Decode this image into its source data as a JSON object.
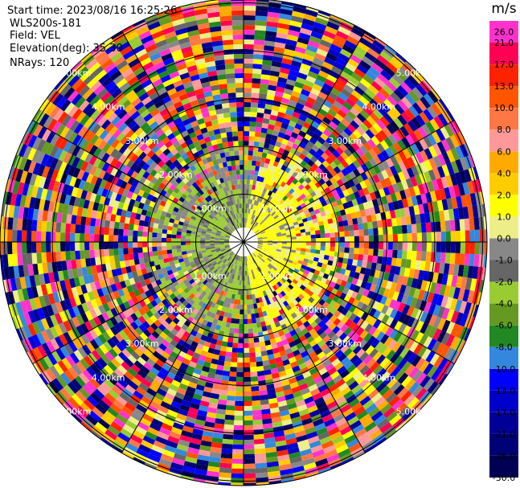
{
  "header": {
    "start_time": "Start time: 2023/08/16 16:25:26",
    "station": "WLS200s-181",
    "field": "Field: VEL",
    "elevation": "Elevation(deg): 35.30",
    "nrays": "NRays: 120"
  },
  "colorbar": {
    "unit": "m/s",
    "ticks": [
      "26.0",
      "21.0",
      "17.0",
      "13.0",
      "10.0",
      "8.0",
      "6.0",
      "4.0",
      "2.0",
      "1.0",
      "0.0",
      "-1.0",
      "-2.0",
      "-4.0",
      "-6.0",
      "-8.0",
      "-10.0",
      "-13.0",
      "-17.0",
      "-21.0",
      "-26.0",
      "-30.0"
    ],
    "colors": [
      "#ff33cc",
      "#ff0055",
      "#ff2200",
      "#ff5500",
      "#ff7744",
      "#ff9999",
      "#ffaa00",
      "#ffcc00",
      "#ffff00",
      "#eeee88",
      "#888888",
      "#666666",
      "#99cc33",
      "#669922",
      "#228822",
      "#3388dd",
      "#0000ff",
      "#0000cc",
      "#000099",
      "#000077",
      "#000055"
    ]
  },
  "chart_data": {
    "type": "heatmap",
    "projection": "polar PPI",
    "field": "VEL",
    "nrays": 120,
    "range_rings_km": [
      1.0,
      2.0,
      3.0,
      4.0,
      5.0
    ],
    "range_ring_labels": [
      "1.00km",
      "2.00km",
      "3.00km",
      "4.00km",
      "5.00km"
    ],
    "value_range": [
      -30.0,
      26.0
    ],
    "grid": true
  }
}
